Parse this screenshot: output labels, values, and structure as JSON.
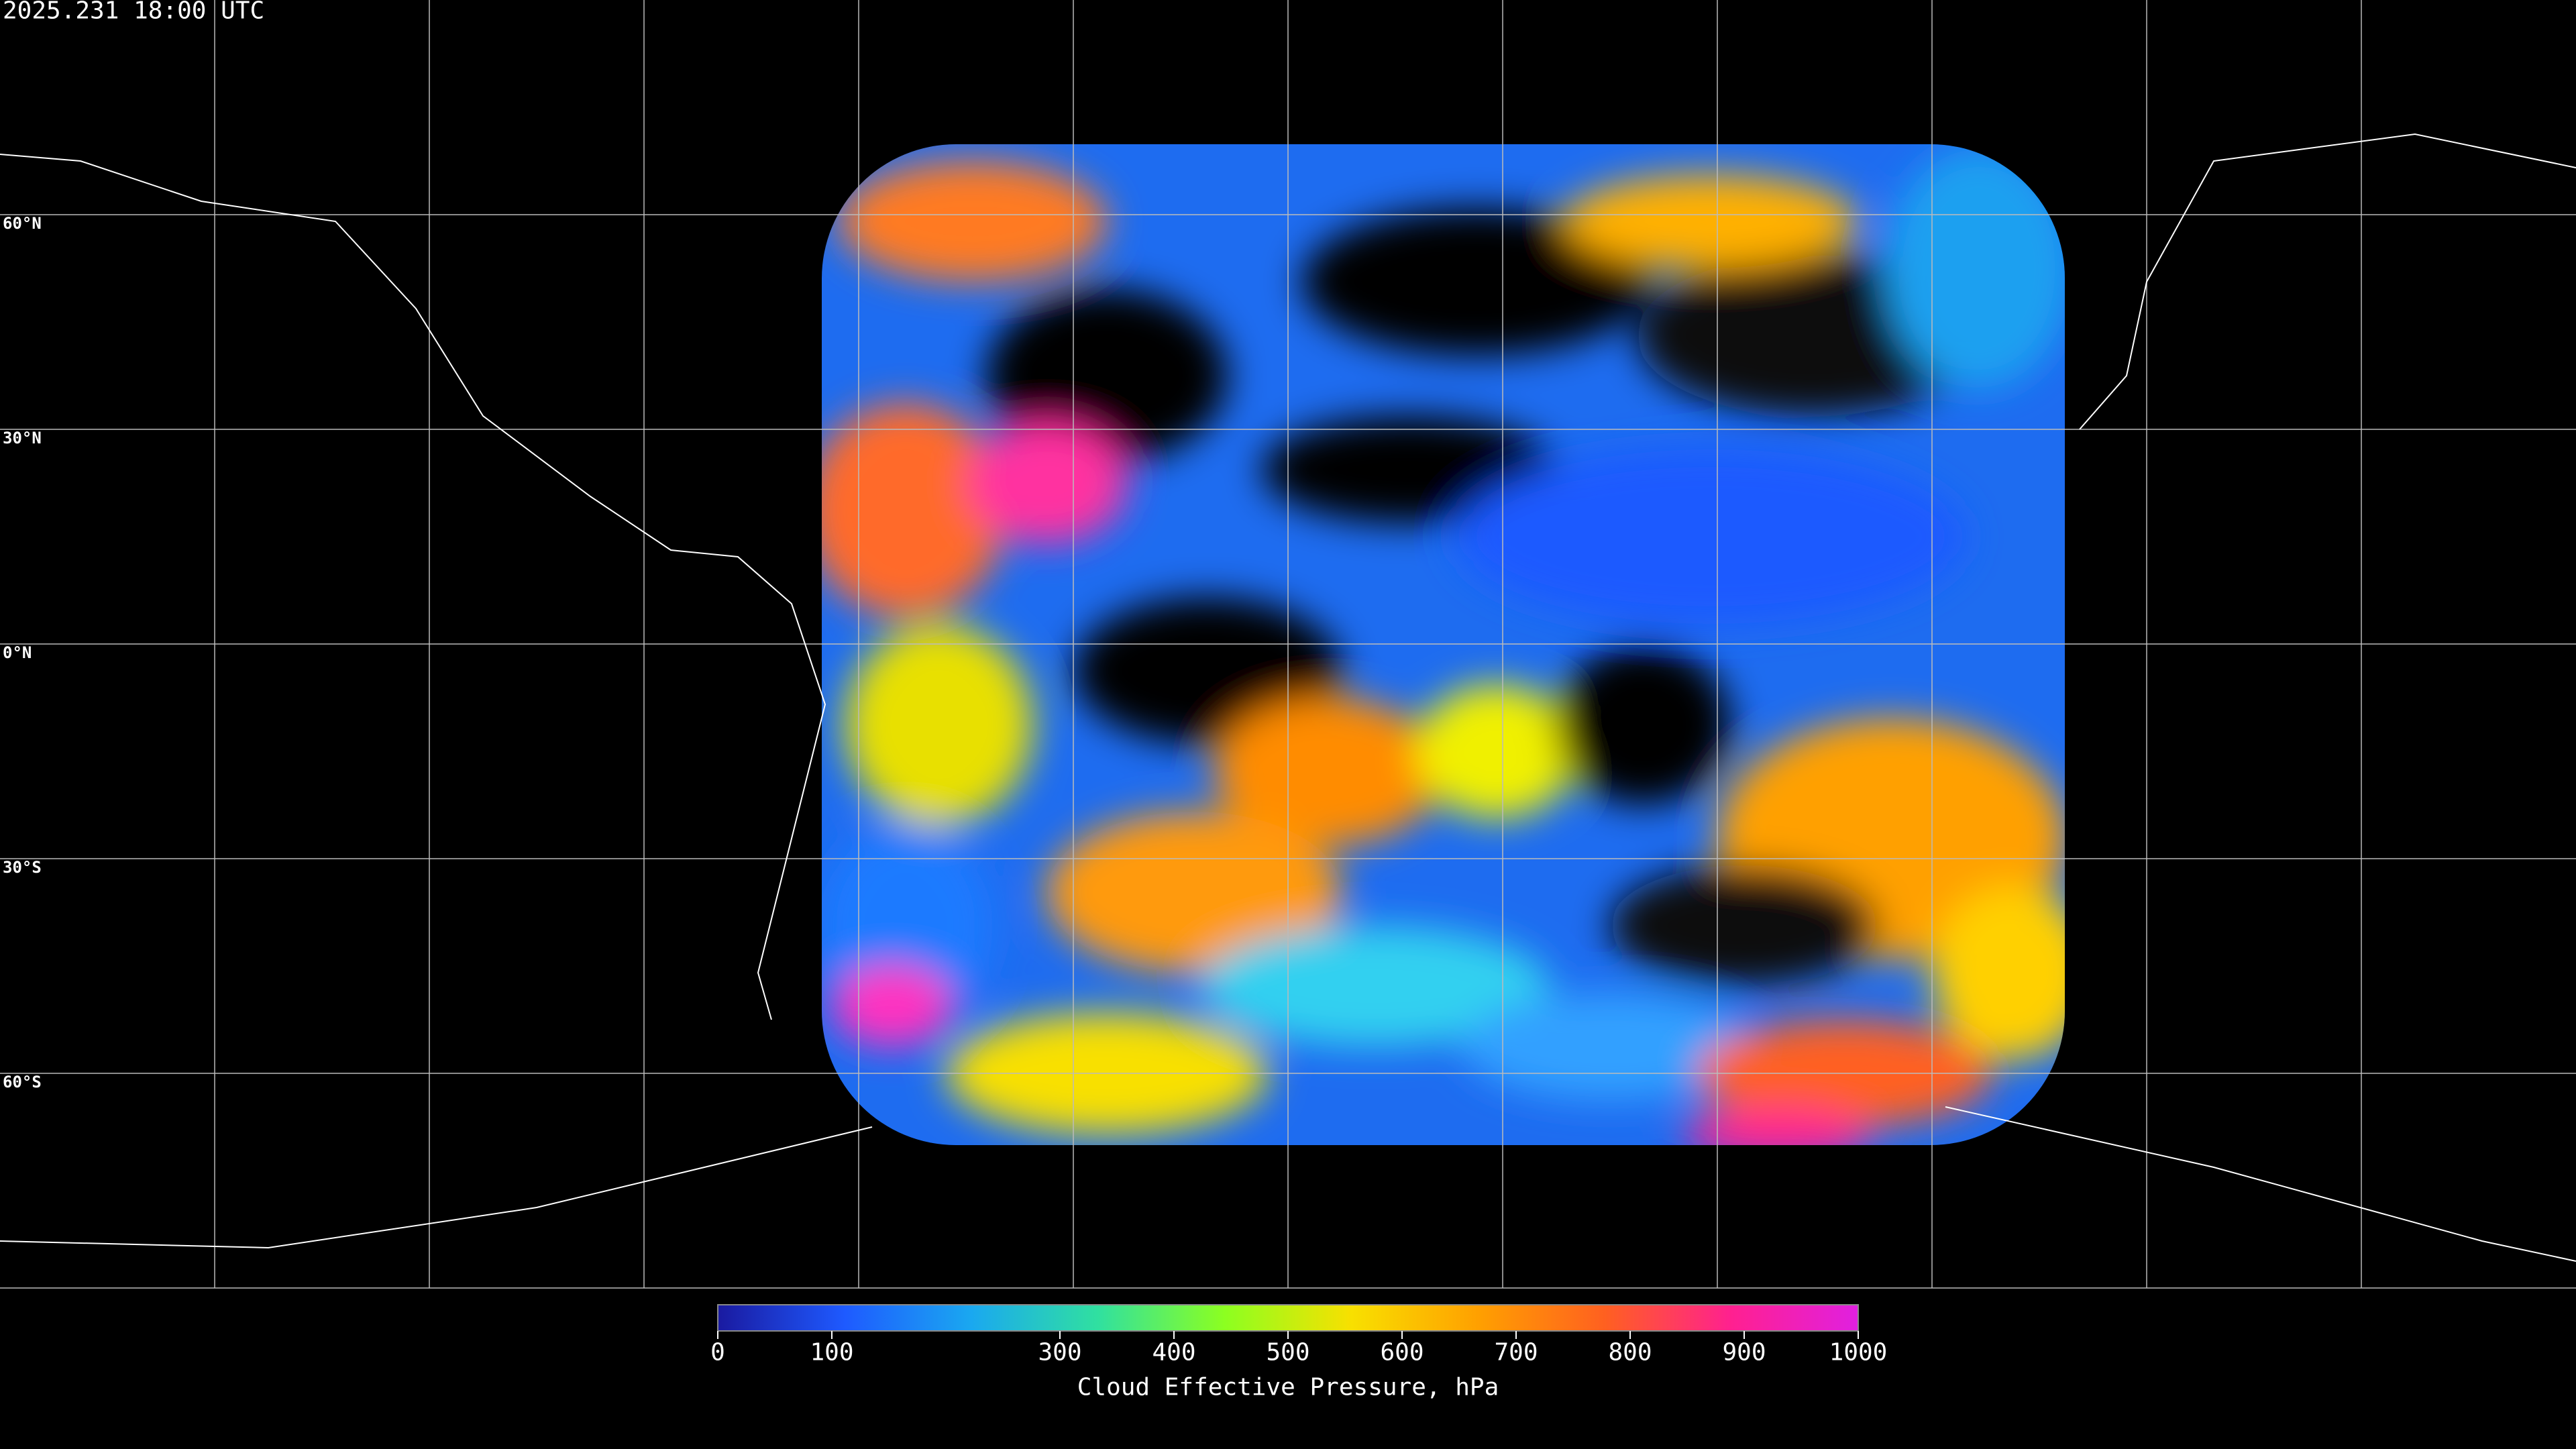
{
  "header": {
    "timestamp": "2025.231 18:00 UTC"
  },
  "map": {
    "lat_labels": [
      {
        "value": 60,
        "label": "60°N"
      },
      {
        "value": 30,
        "label": "30°N"
      },
      {
        "value": 0,
        "label": "0°N"
      },
      {
        "value": -30,
        "label": "30°S"
      },
      {
        "value": -60,
        "label": "60°S"
      }
    ]
  },
  "colorbar": {
    "label": "Cloud Effective Pressure, hPa",
    "range": [
      0,
      1000
    ],
    "ticks": [
      0,
      100,
      300,
      400,
      500,
      600,
      700,
      800,
      900,
      1000
    ],
    "colors": [
      "#1a1aa0",
      "#1e5aff",
      "#1aa8f0",
      "#30e0a0",
      "#8cff20",
      "#f8e000",
      "#ffa000",
      "#ff6020",
      "#ff2090",
      "#e020e0"
    ]
  }
}
